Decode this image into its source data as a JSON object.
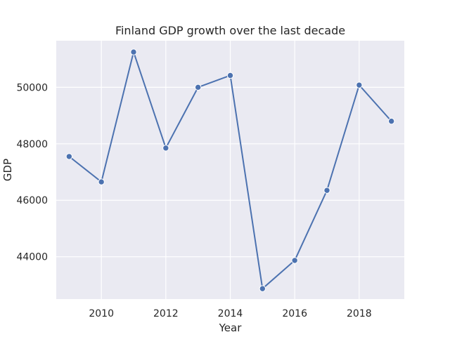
{
  "chart_data": {
    "type": "line",
    "title": "Finland GDP growth over the last decade",
    "xlabel": "Year",
    "ylabel": "GDP",
    "xlim": [
      2008.6,
      2019.4
    ],
    "ylim": [
      42500,
      51650
    ],
    "xticks": [
      2010,
      2012,
      2014,
      2016,
      2018
    ],
    "yticks": [
      44000,
      46000,
      48000,
      50000
    ],
    "grid": true,
    "series": [
      {
        "x": [
          2009,
          2010,
          2011,
          2012,
          2013,
          2014,
          2015,
          2016,
          2017,
          2018,
          2019
        ],
        "values": [
          47550,
          46650,
          51250,
          47850,
          50000,
          50420,
          42870,
          43870,
          46350,
          50080,
          48800
        ]
      }
    ],
    "colors": {
      "background": "#eaeaf2",
      "grid": "#ffffff",
      "line": "#4c72b0",
      "marker_edge": "#ffffff",
      "text": "#262626"
    }
  }
}
